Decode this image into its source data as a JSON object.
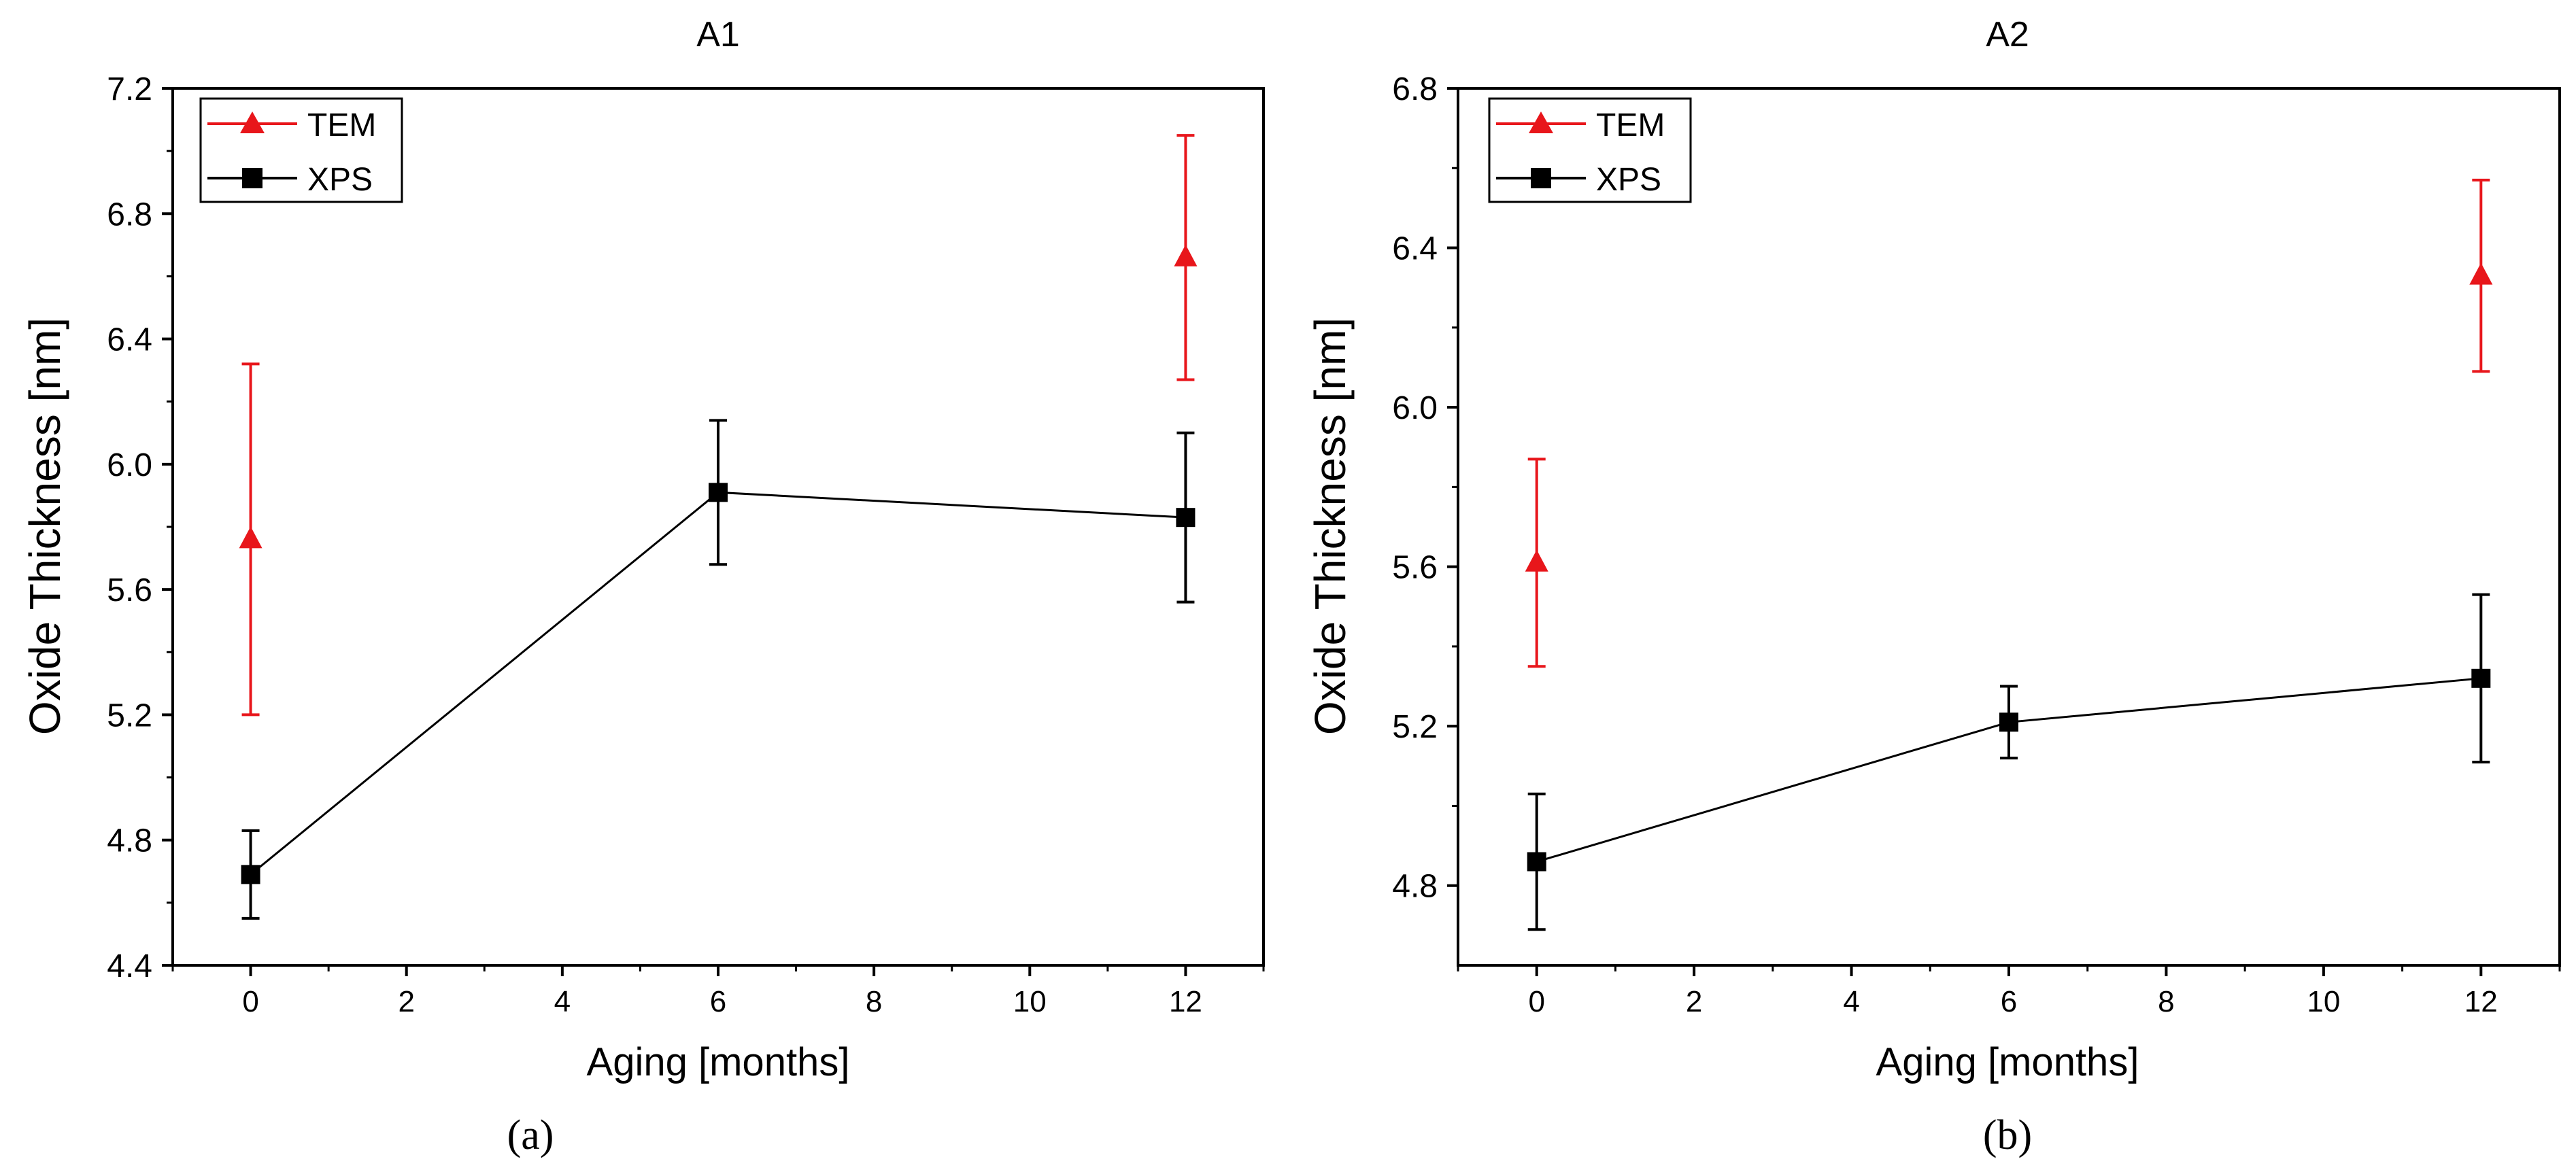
{
  "colors": {
    "tem": "#e8161b",
    "xps": "#000000",
    "axis": "#000000"
  },
  "chart_data": [
    {
      "type": "line",
      "title": "A1",
      "xlabel": "Aging [months]",
      "ylabel": "Oxide Thickness [nm]",
      "xlim": [
        -1,
        13
      ],
      "ylim": [
        4.4,
        7.2
      ],
      "xticks": [
        0,
        2,
        4,
        6,
        8,
        10,
        12
      ],
      "yticks": [
        4.4,
        4.8,
        5.2,
        5.6,
        6.0,
        6.4,
        6.8,
        7.2
      ],
      "ytick_labels": [
        "4.4",
        "4.8",
        "5.2",
        "5.6",
        "6.0",
        "6.4",
        "6.8",
        "7.2"
      ],
      "legend": "top-left",
      "caption": "(a)",
      "series": [
        {
          "name": "TEM",
          "marker": "triangle",
          "connected": false,
          "color": "#e8161b",
          "x": [
            0,
            12
          ],
          "y": [
            5.76,
            6.66
          ],
          "err": [
            0.56,
            0.39
          ]
        },
        {
          "name": "XPS",
          "marker": "square",
          "connected": true,
          "color": "#000000",
          "x": [
            0,
            6,
            12
          ],
          "y": [
            4.69,
            5.91,
            5.83
          ],
          "err": [
            0.14,
            0.23,
            0.27
          ]
        }
      ]
    },
    {
      "type": "line",
      "title": "A2",
      "xlabel": "Aging [months]",
      "ylabel": "Oxide Thickness [nm]",
      "xlim": [
        -1,
        13
      ],
      "ylim": [
        4.6,
        6.8
      ],
      "xticks": [
        0,
        2,
        4,
        6,
        8,
        10,
        12
      ],
      "yticks": [
        4.8,
        5.2,
        5.6,
        6.0,
        6.4,
        6.8
      ],
      "ytick_labels": [
        "4.8",
        "5.2",
        "5.6",
        "6.0",
        "6.4",
        "6.8"
      ],
      "legend": "top-left",
      "caption": "(b)",
      "series": [
        {
          "name": "TEM",
          "marker": "triangle",
          "connected": false,
          "color": "#e8161b",
          "x": [
            0,
            12
          ],
          "y": [
            5.61,
            6.33
          ],
          "err": [
            0.26,
            0.24
          ]
        },
        {
          "name": "XPS",
          "marker": "square",
          "connected": true,
          "color": "#000000",
          "x": [
            0,
            6,
            12
          ],
          "y": [
            4.86,
            5.21,
            5.32
          ],
          "err": [
            0.17,
            0.09,
            0.21
          ]
        }
      ]
    }
  ]
}
